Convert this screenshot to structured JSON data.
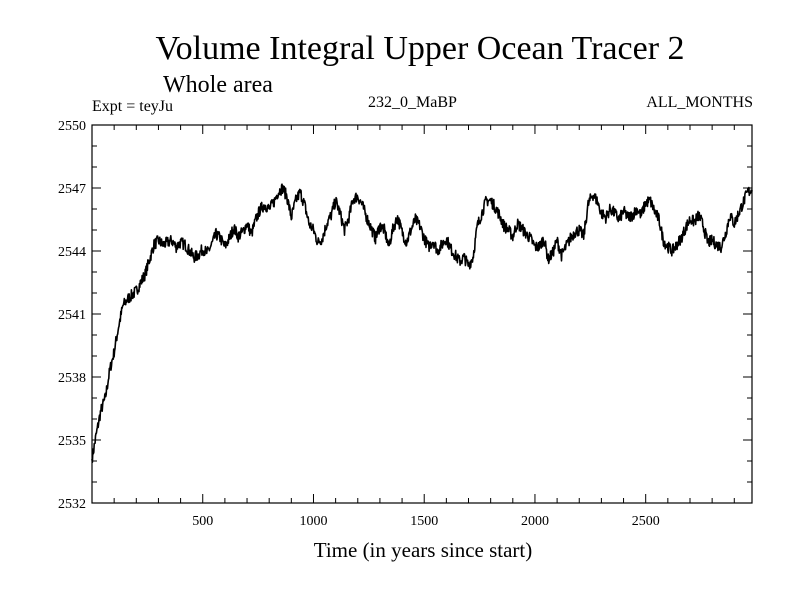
{
  "chart_data": {
    "type": "line",
    "title": "Volume Integral Upper Ocean Tracer 2",
    "subtitle": "Whole area",
    "annotations": {
      "left": "Expt = teyJu",
      "center": "232_0_MaBP",
      "right": "ALL_MONTHS"
    },
    "xlabel": "Time (in years since start)",
    "ylabel": "",
    "xlim": [
      0,
      2980
    ],
    "ylim": [
      2532,
      2550
    ],
    "xticks": [
      500,
      1000,
      1500,
      2000,
      2500
    ],
    "yticks": [
      2532,
      2535,
      2538,
      2541,
      2544,
      2547,
      2550
    ],
    "series": [
      {
        "name": "Tracer 2",
        "x": [
          0,
          20,
          40,
          60,
          80,
          100,
          120,
          140,
          160,
          180,
          200,
          220,
          240,
          260,
          280,
          300,
          320,
          340,
          360,
          380,
          400,
          420,
          440,
          460,
          480,
          500,
          520,
          540,
          560,
          580,
          600,
          620,
          640,
          660,
          680,
          700,
          720,
          740,
          760,
          780,
          800,
          820,
          840,
          860,
          880,
          900,
          920,
          940,
          960,
          980,
          1000,
          1020,
          1040,
          1060,
          1080,
          1100,
          1120,
          1140,
          1160,
          1180,
          1200,
          1220,
          1240,
          1260,
          1280,
          1300,
          1320,
          1340,
          1360,
          1380,
          1400,
          1420,
          1440,
          1460,
          1480,
          1500,
          1520,
          1540,
          1560,
          1580,
          1600,
          1620,
          1640,
          1660,
          1680,
          1700,
          1720,
          1740,
          1760,
          1780,
          1800,
          1820,
          1840,
          1860,
          1880,
          1900,
          1920,
          1940,
          1960,
          1980,
          2000,
          2020,
          2040,
          2060,
          2080,
          2100,
          2120,
          2140,
          2160,
          2180,
          2200,
          2220,
          2240,
          2260,
          2280,
          2300,
          2320,
          2340,
          2360,
          2380,
          2400,
          2420,
          2440,
          2460,
          2480,
          2500,
          2520,
          2540,
          2560,
          2580,
          2600,
          2620,
          2640,
          2660,
          2680,
          2700,
          2720,
          2740,
          2760,
          2780,
          2800,
          2820,
          2840,
          2860,
          2880,
          2900,
          2920,
          2940,
          2960,
          2980
        ],
        "values": [
          2534.1,
          2535.3,
          2536.4,
          2537.0,
          2538.3,
          2539.2,
          2540.4,
          2541.4,
          2541.7,
          2541.9,
          2542.1,
          2542.5,
          2542.9,
          2543.6,
          2544.3,
          2544.5,
          2544.3,
          2544.4,
          2544.5,
          2544.2,
          2544.4,
          2544.3,
          2544.0,
          2543.7,
          2543.8,
          2544.1,
          2543.9,
          2544.3,
          2544.8,
          2544.6,
          2544.2,
          2544.6,
          2545.1,
          2544.7,
          2544.9,
          2545.3,
          2544.8,
          2545.5,
          2546.0,
          2546.2,
          2546.0,
          2546.3,
          2546.8,
          2547.0,
          2546.6,
          2545.6,
          2546.4,
          2546.8,
          2546.2,
          2545.3,
          2545.0,
          2544.4,
          2544.6,
          2545.3,
          2545.7,
          2546.4,
          2545.8,
          2545.0,
          2545.6,
          2546.5,
          2546.6,
          2546.2,
          2545.6,
          2545.1,
          2544.6,
          2545.2,
          2545.0,
          2544.2,
          2545.1,
          2545.6,
          2544.9,
          2544.4,
          2545.0,
          2545.5,
          2545.2,
          2544.6,
          2544.2,
          2544.5,
          2544.0,
          2544.3,
          2544.6,
          2544.1,
          2543.8,
          2543.5,
          2543.7,
          2543.3,
          2543.7,
          2545.2,
          2545.8,
          2546.4,
          2546.4,
          2546.1,
          2545.7,
          2545.2,
          2545.0,
          2544.7,
          2545.3,
          2545.1,
          2544.8,
          2544.6,
          2544.2,
          2544.2,
          2544.6,
          2543.6,
          2543.9,
          2544.5,
          2543.8,
          2544.2,
          2544.6,
          2544.9,
          2545.0,
          2544.7,
          2546.2,
          2546.7,
          2546.4,
          2545.8,
          2545.6,
          2546.0,
          2545.8,
          2545.5,
          2545.9,
          2545.6,
          2545.7,
          2546.0,
          2545.7,
          2546.3,
          2546.4,
          2545.9,
          2545.5,
          2544.5,
          2544.2,
          2544.0,
          2544.3,
          2544.6,
          2545.1,
          2545.5,
          2545.4,
          2545.7,
          2545.2,
          2544.4,
          2544.5,
          2544.3,
          2544.2,
          2544.8,
          2545.7,
          2545.3,
          2545.8,
          2546.3,
          2546.8,
          2546.9
        ]
      }
    ]
  }
}
